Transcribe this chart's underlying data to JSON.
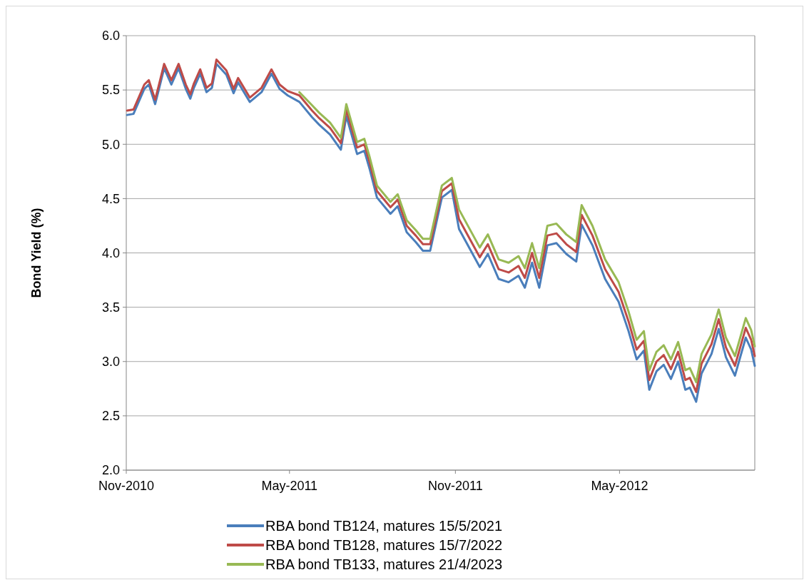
{
  "chart_data": {
    "type": "line",
    "ylabel": "Bond Yield (%)",
    "xlim": [
      "2010-11-01",
      "2012-09-28"
    ],
    "xticks": [
      {
        "value": "2010-11-01",
        "label": "Nov-2010"
      },
      {
        "value": "2011-05-01",
        "label": "May-2011"
      },
      {
        "value": "2011-11-01",
        "label": "Nov-2011"
      },
      {
        "value": "2012-05-01",
        "label": "May-2012"
      }
    ],
    "ylim": [
      2,
      6
    ],
    "yticks": [
      {
        "value": 2,
        "label": "2.0"
      },
      {
        "value": 2.5,
        "label": "2.5"
      },
      {
        "value": 3,
        "label": "3.0"
      },
      {
        "value": 3.5,
        "label": "3.5"
      },
      {
        "value": 4,
        "label": "4.0"
      },
      {
        "value": 4.5,
        "label": "4.5"
      },
      {
        "value": 5,
        "label": "5.0"
      },
      {
        "value": 5.5,
        "label": "5.5"
      },
      {
        "value": 6,
        "label": "6.0"
      }
    ],
    "grid": "y",
    "legend": "bottom",
    "marker": "none",
    "line_style": "solid",
    "x": [
      "2010-11-02",
      "2010-11-09",
      "2010-11-21",
      "2010-11-26",
      "2010-12-03",
      "2010-12-07",
      "2010-12-13",
      "2010-12-21",
      "2010-12-29",
      "2011-01-06",
      "2011-01-11",
      "2011-01-15",
      "2011-01-22",
      "2011-01-29",
      "2011-02-04",
      "2011-02-09",
      "2011-02-20",
      "2011-02-28",
      "2011-03-05",
      "2011-03-18",
      "2011-03-31",
      "2011-04-11",
      "2011-04-20",
      "2011-04-29",
      "2011-05-12",
      "2011-05-26",
      "2011-06-03",
      "2011-06-15",
      "2011-06-27",
      "2011-07-03",
      "2011-07-15",
      "2011-07-23",
      "2011-07-29",
      "2011-08-06",
      "2011-08-21",
      "2011-08-29",
      "2011-09-08",
      "2011-09-18",
      "2011-09-26",
      "2011-10-04",
      "2011-10-17",
      "2011-10-28",
      "2011-11-05",
      "2011-11-28",
      "2011-12-07",
      "2011-12-19",
      "2011-12-30",
      "2012-01-10",
      "2012-01-17",
      "2012-01-25",
      "2012-02-02",
      "2012-02-11",
      "2012-02-21",
      "2012-03-03",
      "2012-03-14",
      "2012-03-20",
      "2012-04-01",
      "2012-04-15",
      "2012-04-30",
      "2012-05-11",
      "2012-05-20",
      "2012-05-28",
      "2012-06-03",
      "2012-06-11",
      "2012-06-19",
      "2012-06-27",
      "2012-07-05",
      "2012-07-13",
      "2012-07-18",
      "2012-07-25",
      "2012-07-31",
      "2012-08-11",
      "2012-08-19",
      "2012-08-27",
      "2012-09-06",
      "2012-09-18",
      "2012-09-24",
      "2012-09-28"
    ],
    "series": [
      {
        "name": "RBA bond TB124, matures 15/5/2021",
        "color": "#4a7ebb",
        "values": [
          5.27,
          5.28,
          5.51,
          5.55,
          5.37,
          5.5,
          5.7,
          5.55,
          5.7,
          5.51,
          5.42,
          5.52,
          5.65,
          5.48,
          5.52,
          5.74,
          5.64,
          5.47,
          5.57,
          5.39,
          5.48,
          5.65,
          5.51,
          5.45,
          5.39,
          5.25,
          5.18,
          5.09,
          4.95,
          5.26,
          4.91,
          4.94,
          4.77,
          4.51,
          4.36,
          4.43,
          4.19,
          4.1,
          4.02,
          4.02,
          4.51,
          4.58,
          4.22,
          3.87,
          3.99,
          3.76,
          3.73,
          3.79,
          3.68,
          3.91,
          3.68,
          4.07,
          4.09,
          3.99,
          3.92,
          4.26,
          4.07,
          3.76,
          3.55,
          3.28,
          3.02,
          3.1,
          2.74,
          2.91,
          2.97,
          2.84,
          3.0,
          2.74,
          2.76,
          2.63,
          2.89,
          3.07,
          3.3,
          3.04,
          2.87,
          3.22,
          3.11,
          2.96
        ]
      },
      {
        "name": "RBA bond TB128, matures 15/7/2022",
        "color": "#be4b48",
        "values": [
          5.31,
          5.32,
          5.55,
          5.59,
          5.41,
          5.54,
          5.74,
          5.59,
          5.74,
          5.55,
          5.46,
          5.56,
          5.69,
          5.52,
          5.56,
          5.78,
          5.68,
          5.51,
          5.61,
          5.43,
          5.52,
          5.69,
          5.55,
          5.49,
          5.45,
          5.31,
          5.24,
          5.15,
          5.01,
          5.32,
          4.97,
          5.0,
          4.83,
          4.57,
          4.42,
          4.49,
          4.25,
          4.16,
          4.08,
          4.08,
          4.57,
          4.64,
          4.31,
          3.96,
          4.08,
          3.85,
          3.82,
          3.88,
          3.77,
          4.0,
          3.77,
          4.16,
          4.18,
          4.08,
          4.01,
          4.35,
          4.16,
          3.85,
          3.64,
          3.37,
          3.11,
          3.19,
          2.83,
          3.0,
          3.06,
          2.93,
          3.09,
          2.83,
          2.85,
          2.72,
          2.98,
          3.16,
          3.39,
          3.13,
          2.96,
          3.31,
          3.2,
          3.05
        ]
      },
      {
        "name": "RBA bond TB133, matures 21/4/2023",
        "color": "#98b954",
        "x": [
          "2011-05-12",
          "2011-05-26",
          "2011-06-03",
          "2011-06-15",
          "2011-06-27",
          "2011-07-03",
          "2011-07-15",
          "2011-07-23",
          "2011-07-29",
          "2011-08-06",
          "2011-08-21",
          "2011-08-29",
          "2011-09-08",
          "2011-09-18",
          "2011-09-26",
          "2011-10-04",
          "2011-10-17",
          "2011-10-28",
          "2011-11-05",
          "2011-11-28",
          "2011-12-07",
          "2011-12-19",
          "2011-12-30",
          "2012-01-10",
          "2012-01-17",
          "2012-01-25",
          "2012-02-02",
          "2012-02-11",
          "2012-02-21",
          "2012-03-03",
          "2012-03-14",
          "2012-03-20",
          "2012-04-01",
          "2012-04-15",
          "2012-04-30",
          "2012-05-11",
          "2012-05-20",
          "2012-05-28",
          "2012-06-03",
          "2012-06-11",
          "2012-06-19",
          "2012-06-27",
          "2012-07-05",
          "2012-07-13",
          "2012-07-18",
          "2012-07-25",
          "2012-07-31",
          "2012-08-11",
          "2012-08-19",
          "2012-08-27",
          "2012-09-06",
          "2012-09-18",
          "2012-09-24",
          "2012-09-28"
        ],
        "values": [
          5.48,
          5.36,
          5.29,
          5.2,
          5.06,
          5.37,
          5.02,
          5.05,
          4.88,
          4.62,
          4.47,
          4.54,
          4.3,
          4.21,
          4.13,
          4.13,
          4.62,
          4.69,
          4.4,
          4.05,
          4.17,
          3.94,
          3.91,
          3.97,
          3.86,
          4.09,
          3.86,
          4.25,
          4.27,
          4.17,
          4.1,
          4.44,
          4.25,
          3.94,
          3.73,
          3.46,
          3.2,
          3.28,
          2.92,
          3.09,
          3.15,
          3.02,
          3.18,
          2.92,
          2.94,
          2.81,
          3.07,
          3.25,
          3.48,
          3.22,
          3.05,
          3.4,
          3.29,
          3.14
        ]
      }
    ]
  }
}
